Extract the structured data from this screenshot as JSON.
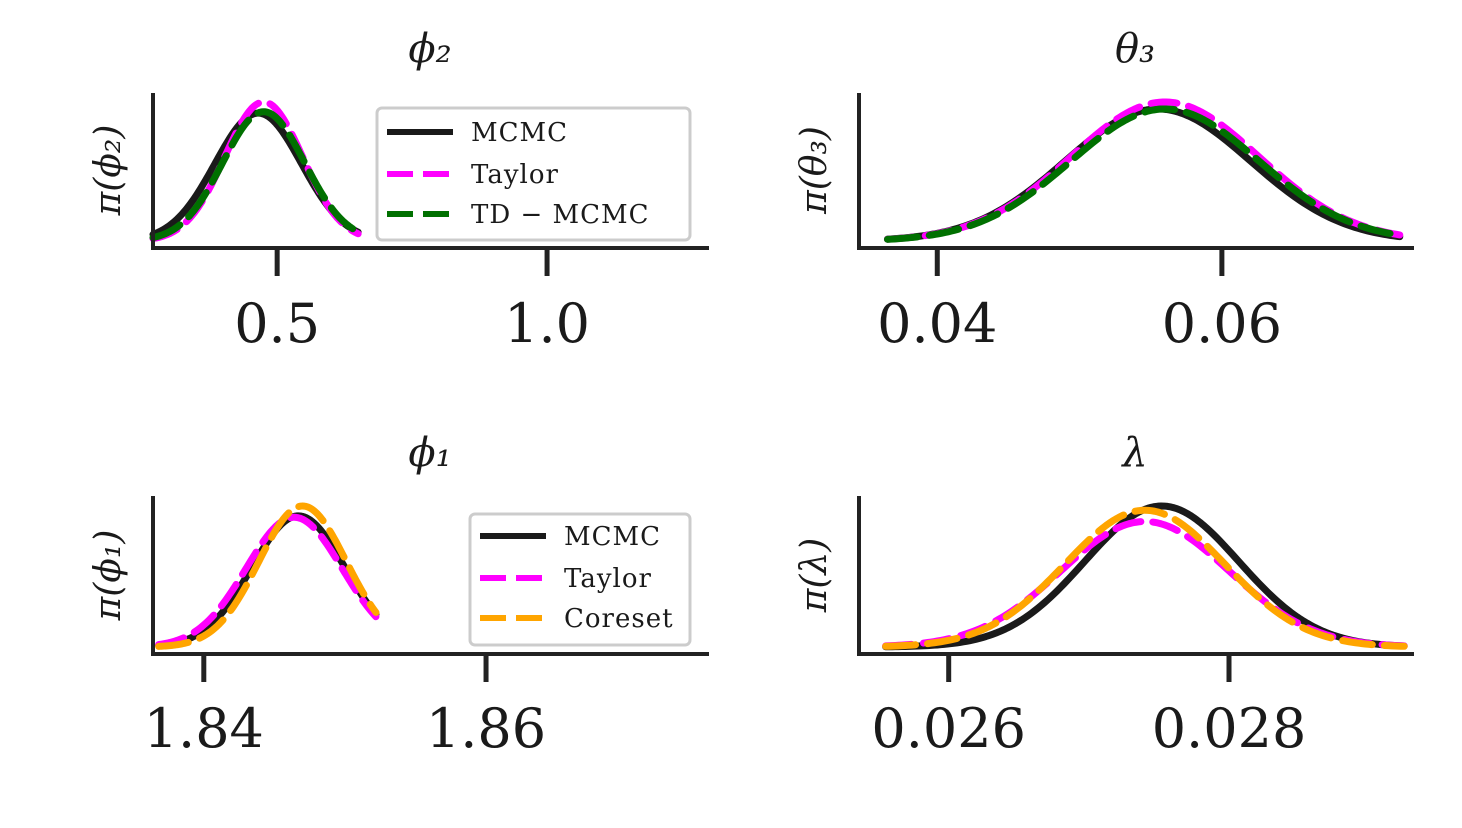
{
  "figure": {
    "colors": {
      "MCMC": "#1a1a1a",
      "Taylor": "#ff00ff",
      "TD_MCMC": "#007000",
      "Coreset": "#ffa500",
      "axis": "#222222"
    }
  },
  "chart_data": [
    {
      "type": "line",
      "id": "phi2",
      "title": "ϕ₂",
      "ylabel": "π(ϕ₂)",
      "xlim": [
        0.27,
        1.3
      ],
      "xticks": [
        0.5,
        1.0
      ],
      "xtick_labels": [
        "0.5",
        "1.0"
      ],
      "legend": [
        "MCMC",
        "Taylor",
        "TD − MCMC"
      ],
      "legend_position": "top-right",
      "series": [
        {
          "name": "MCMC",
          "mean": 0.465,
          "sd": 0.08,
          "peak": 0.92,
          "range": [
            0.27,
            0.65
          ]
        },
        {
          "name": "Taylor",
          "mean": 0.475,
          "sd": 0.072,
          "peak": 1.0,
          "range": [
            0.27,
            0.65
          ]
        },
        {
          "name": "TD − MCMC",
          "mean": 0.475,
          "sd": 0.076,
          "peak": 0.93,
          "range": [
            0.27,
            0.65
          ]
        }
      ]
    },
    {
      "type": "line",
      "id": "theta3",
      "title": "θ₃",
      "ylabel": "π(θ₃)",
      "xlim": [
        0.0345,
        0.0735
      ],
      "xticks": [
        0.04,
        0.06
      ],
      "xtick_labels": [
        "0.04",
        "0.06"
      ],
      "series": [
        {
          "name": "MCMC",
          "mean": 0.0555,
          "sd": 0.0065,
          "peak": 0.95,
          "range": [
            0.0365,
            0.0725
          ]
        },
        {
          "name": "Taylor",
          "mean": 0.056,
          "sd": 0.0066,
          "peak": 1.0,
          "range": [
            0.0365,
            0.0725
          ]
        },
        {
          "name": "TD − MCMC",
          "mean": 0.056,
          "sd": 0.0066,
          "peak": 0.95,
          "range": [
            0.0365,
            0.0725
          ]
        }
      ]
    },
    {
      "type": "line",
      "id": "phi1",
      "title": "ϕ₁",
      "ylabel": "π(ϕ₁)",
      "xlim": [
        1.8364,
        1.8758
      ],
      "xticks": [
        1.84,
        1.86
      ],
      "xtick_labels": [
        "1.84",
        "1.86"
      ],
      "legend": [
        "MCMC",
        "Taylor",
        "Coreset"
      ],
      "legend_position": "top-right",
      "series": [
        {
          "name": "MCMC",
          "mean": 1.8467,
          "sd": 0.0033,
          "peak": 0.93,
          "range": [
            1.8368,
            1.8522
          ]
        },
        {
          "name": "Taylor",
          "mean": 1.8464,
          "sd": 0.0034,
          "peak": 0.92,
          "range": [
            1.8368,
            1.8522
          ]
        },
        {
          "name": "Coreset",
          "mean": 1.847,
          "sd": 0.0031,
          "peak": 1.0,
          "range": [
            1.8368,
            1.8522
          ]
        }
      ]
    },
    {
      "type": "line",
      "id": "lambda",
      "title": "λ",
      "ylabel": "π(λ)",
      "xlim": [
        0.02536,
        0.02932
      ],
      "xticks": [
        0.026,
        0.028
      ],
      "xtick_labels": [
        "0.026",
        "0.028"
      ],
      "series": [
        {
          "name": "MCMC",
          "mean": 0.02752,
          "sd": 0.00055,
          "peak": 1.0,
          "range": [
            0.02555,
            0.02925
          ]
        },
        {
          "name": "Taylor",
          "mean": 0.0274,
          "sd": 0.0006,
          "peak": 0.89,
          "range": [
            0.02555,
            0.02925
          ]
        },
        {
          "name": "Coreset",
          "mean": 0.0274,
          "sd": 0.00057,
          "peak": 0.97,
          "range": [
            0.02555,
            0.02925
          ]
        }
      ]
    }
  ]
}
